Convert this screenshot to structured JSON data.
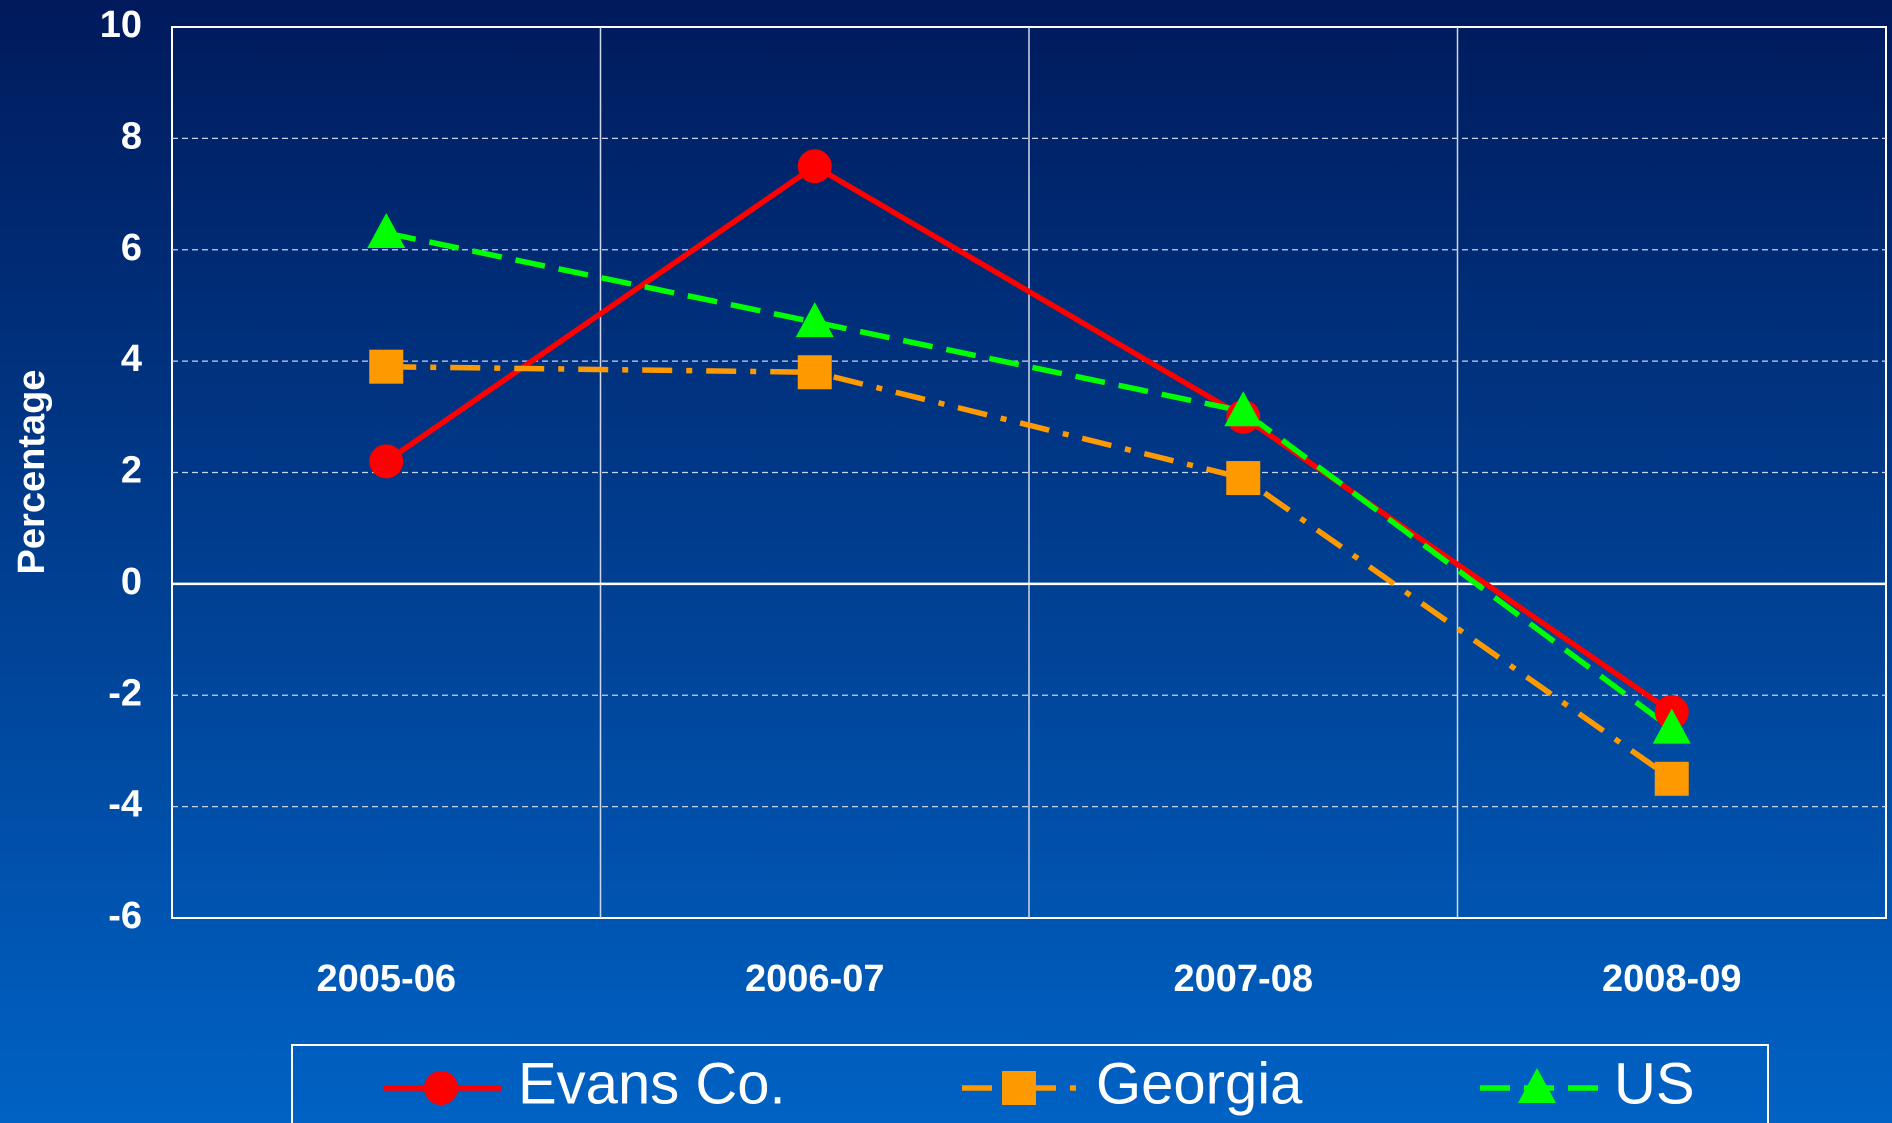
{
  "chart_data": {
    "type": "line",
    "y_label": "Percentage",
    "categories": [
      "2005-06",
      "2006-07",
      "2007-08",
      "2008-09"
    ],
    "series": [
      {
        "name": "Evans Co.",
        "color": "#ff0000",
        "marker": "circle",
        "dash": "solid",
        "values": [
          2.2,
          7.5,
          3.0,
          -2.3
        ]
      },
      {
        "name": "Georgia",
        "color": "#ff9900",
        "marker": "square",
        "dash": "dashdot",
        "values": [
          3.9,
          3.8,
          1.9,
          -3.5
        ]
      },
      {
        "name": "US",
        "color": "#00ff00",
        "marker": "triangle",
        "dash": "dashed",
        "values": [
          6.3,
          4.7,
          3.1,
          -2.6
        ]
      }
    ],
    "ylim": [
      -6,
      10
    ],
    "yticks": [
      -6,
      -4,
      -2,
      0,
      2,
      4,
      6,
      8,
      10
    ],
    "grid": true,
    "legend": "bottom"
  }
}
